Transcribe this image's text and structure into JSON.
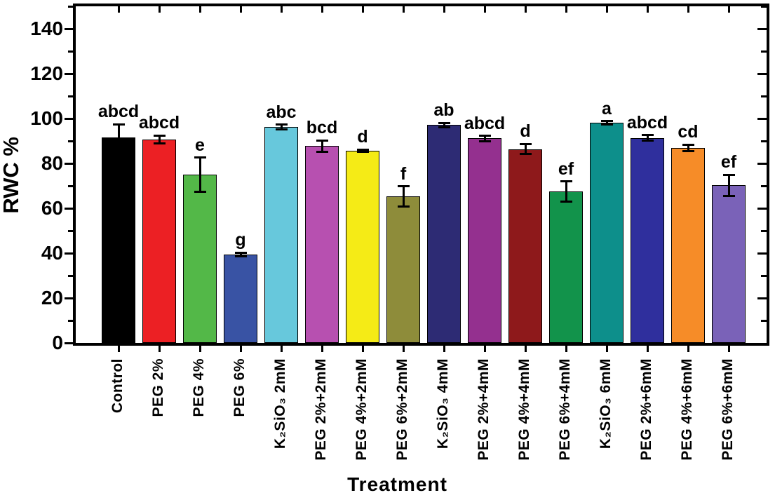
{
  "chart_data": {
    "type": "bar",
    "title": "",
    "xlabel": "Treatment",
    "ylabel": "RWC %",
    "ylim": [
      0,
      150
    ],
    "yticks_major": [
      0,
      20,
      40,
      60,
      80,
      100,
      120,
      140
    ],
    "yticks_minor": [
      10,
      30,
      50,
      70,
      90,
      110,
      130,
      150
    ],
    "grid": false,
    "legend": "none",
    "categories": [
      "Control",
      "PEG 2%",
      "PEG 4%",
      "PEG 6%",
      "K₂SiO₃ 2mM",
      "PEG 2%+2mM",
      "PEG 4%+2mM",
      "PEG 6%+2mM",
      "K₂SiO₃ 4mM",
      "PEG 2%+4mM",
      "PEG 4%+4mM",
      "PEG 6%+4mM",
      "K₂SiO₃ 6mM",
      "PEG 2%+6mM",
      "PEG 4%+6mM",
      "PEG 6%+6mM"
    ],
    "values": [
      91.5,
      90.7,
      75.0,
      39.5,
      96.3,
      87.7,
      85.6,
      65.3,
      97.1,
      91.1,
      86.4,
      67.5,
      98.0,
      91.4,
      86.9,
      70.3
    ],
    "errors": [
      6.0,
      1.8,
      7.6,
      0.8,
      1.0,
      2.6,
      0.5,
      4.5,
      0.9,
      1.2,
      2.2,
      4.4,
      0.8,
      1.2,
      1.4,
      4.7
    ],
    "sig_letters": [
      "abcd",
      "abcd",
      "e",
      "g",
      "abc",
      "bcd",
      "d",
      "f",
      "ab",
      "abcd",
      "d",
      "ef",
      "a",
      "abcd",
      "cd",
      "ef"
    ],
    "bar_colors": [
      "#000000",
      "#EC2024",
      "#53B848",
      "#3953A4",
      "#67C8DC",
      "#B750B0",
      "#F5EB16",
      "#8E8C3A",
      "#2D2B74",
      "#94308F",
      "#8E191B",
      "#12934B",
      "#0D8F8B",
      "#2F2F9D",
      "#F68C28",
      "#7A62B8"
    ],
    "axis_color": "#000000",
    "background_color": "#FFFFFF",
    "error_bar_color": "#000000"
  }
}
